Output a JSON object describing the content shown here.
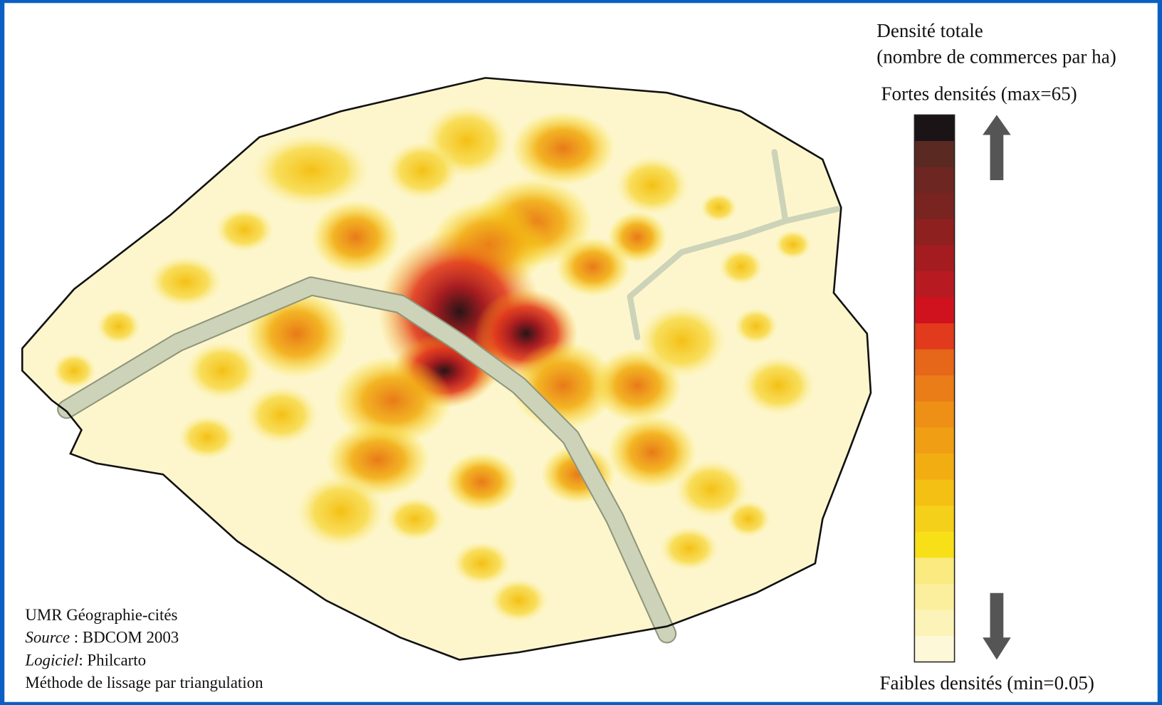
{
  "legend": {
    "title": "Densité totale",
    "subtitle": "(nombre de commerces par ha)",
    "high_label": "Fortes densités (max=65)",
    "low_label": "Faibles densités (min=0.05)",
    "colors": [
      "#1a1416",
      "#5a2a22",
      "#6e2622",
      "#7a2422",
      "#8e2020",
      "#a51c20",
      "#b81a22",
      "#d0121e",
      "#e23a1c",
      "#e6661a",
      "#ea7d18",
      "#ee9016",
      "#f09f14",
      "#f2ad12",
      "#f4c014",
      "#f5d01a",
      "#f7e018",
      "#faea80",
      "#fbef9e",
      "#fcf3b8",
      "#fdf8d8"
    ]
  },
  "credits": {
    "org": "UMR Géographie-cités",
    "source": {
      "label": "Source",
      "text": " : BDCOM 2003"
    },
    "software": {
      "label": "Logiciel",
      "text": ": Philcarto"
    },
    "method": "Méthode de lissage par triangulation"
  }
}
